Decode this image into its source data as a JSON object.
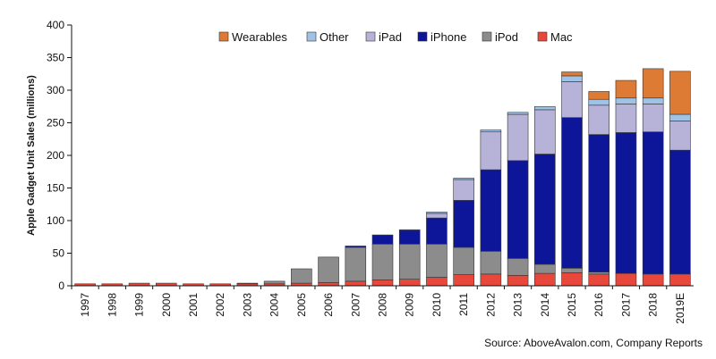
{
  "chart_data": {
    "type": "bar",
    "stacked": true,
    "title": "",
    "xlabel": "",
    "ylabel": "Apple Gadget Unit Sales (millions)",
    "ylim": [
      0,
      400
    ],
    "yticks": [
      0,
      50,
      100,
      150,
      200,
      250,
      300,
      350,
      400
    ],
    "grid": false,
    "legend_position": "top-right",
    "source": "Source: AboveAvalon.com, Company Reports",
    "categories": [
      "1997",
      "1998",
      "1999",
      "2000",
      "2001",
      "2002",
      "2003",
      "2004",
      "2005",
      "2006",
      "2007",
      "2008",
      "2009",
      "2010",
      "2011",
      "2012",
      "2013",
      "2014",
      "2015",
      "2016",
      "2017",
      "2018",
      "2019E"
    ],
    "series": [
      {
        "name": "Mac",
        "color": "#e8483b",
        "values": [
          3,
          3,
          4,
          4,
          3,
          3,
          3,
          3,
          4,
          5,
          7,
          9,
          10,
          13,
          17,
          18,
          16,
          19,
          20,
          18,
          19,
          18,
          18
        ]
      },
      {
        "name": "iPod",
        "color": "#8c8c8c",
        "values": [
          0,
          0,
          0,
          0,
          0,
          0,
          1,
          4,
          22,
          39,
          52,
          55,
          54,
          51,
          42,
          35,
          26,
          14,
          7,
          3,
          0,
          0,
          0
        ]
      },
      {
        "name": "iPhone",
        "color": "#0d1699",
        "values": [
          0,
          0,
          0,
          0,
          0,
          0,
          0,
          0,
          0,
          0,
          2,
          14,
          21,
          40,
          72,
          125,
          150,
          169,
          231,
          211,
          216,
          218,
          190
        ]
      },
      {
        "name": "iPad",
        "color": "#b7b2d8",
        "values": [
          0,
          0,
          0,
          0,
          0,
          0,
          0,
          0,
          0,
          0,
          0,
          0,
          0,
          7,
          32,
          58,
          71,
          68,
          55,
          45,
          44,
          43,
          45
        ]
      },
      {
        "name": "Other",
        "color": "#9fc3e7",
        "values": [
          0,
          0,
          0,
          0,
          0,
          0,
          0,
          0,
          0,
          0,
          0,
          0,
          1,
          2,
          2,
          3,
          3,
          5,
          9,
          9,
          9,
          9,
          10
        ]
      },
      {
        "name": "Wearables",
        "color": "#dd7b34",
        "values": [
          0,
          0,
          0,
          0,
          0,
          0,
          0,
          0,
          0,
          0,
          0,
          0,
          0,
          0,
          0,
          0,
          0,
          0,
          6,
          12,
          27,
          45,
          66
        ]
      }
    ],
    "legend_order": [
      "Wearables",
      "Other",
      "iPad",
      "iPhone",
      "iPod",
      "Mac"
    ]
  }
}
